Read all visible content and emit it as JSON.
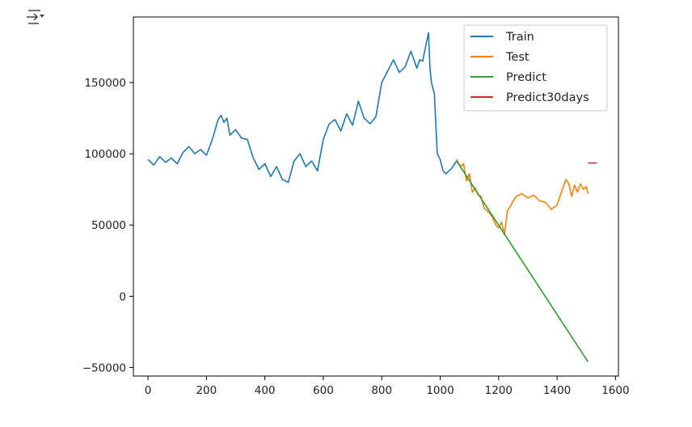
{
  "toolbar": {
    "icon": "output-collapse-icon"
  },
  "chart_data": {
    "type": "line",
    "title": "",
    "xlabel": "",
    "ylabel": "",
    "xlim": [
      -50,
      1610
    ],
    "ylim": [
      -56000,
      196000
    ],
    "xticks": [
      0,
      200,
      400,
      600,
      800,
      1000,
      1200,
      1400,
      1600
    ],
    "xtick_labels": [
      "0",
      "200",
      "400",
      "600",
      "800",
      "1000",
      "1200",
      "1400",
      "1600"
    ],
    "yticks": [
      -50000,
      0,
      50000,
      100000,
      150000
    ],
    "ytick_labels": [
      "−50000",
      "0",
      "50000",
      "100000",
      "150000"
    ],
    "grid": false,
    "legend_position": "top-right",
    "series": [
      {
        "name": "Train",
        "color": "#1f77b4",
        "x": [
          0,
          20,
          40,
          60,
          80,
          100,
          120,
          140,
          160,
          180,
          200,
          220,
          240,
          250,
          260,
          270,
          280,
          300,
          320,
          340,
          360,
          380,
          400,
          420,
          440,
          460,
          480,
          500,
          520,
          540,
          560,
          580,
          600,
          620,
          640,
          660,
          680,
          700,
          720,
          740,
          760,
          780,
          800,
          820,
          840,
          860,
          880,
          900,
          920,
          930,
          940,
          950,
          960,
          965,
          970,
          980,
          990,
          1000,
          1010,
          1020,
          1040,
          1056
        ],
        "y": [
          96000,
          92000,
          98000,
          94000,
          97000,
          93000,
          101000,
          105000,
          100000,
          103000,
          99000,
          110000,
          124000,
          127000,
          122000,
          125000,
          113000,
          117000,
          111000,
          110000,
          97000,
          89000,
          93000,
          84000,
          91000,
          82000,
          80000,
          95000,
          100000,
          91000,
          95000,
          88000,
          110000,
          121000,
          124000,
          116000,
          128000,
          120000,
          137000,
          125000,
          121000,
          126000,
          150000,
          158000,
          166000,
          157000,
          161000,
          172000,
          160000,
          166000,
          165000,
          175000,
          185000,
          160000,
          150000,
          142000,
          100000,
          96000,
          88000,
          86000,
          90000,
          95000
        ]
      },
      {
        "name": "Test",
        "color": "#ff7f0e",
        "x": [
          1056,
          1070,
          1080,
          1090,
          1100,
          1110,
          1120,
          1130,
          1140,
          1150,
          1160,
          1170,
          1180,
          1190,
          1200,
          1210,
          1220,
          1230,
          1240,
          1250,
          1260,
          1280,
          1300,
          1320,
          1340,
          1360,
          1380,
          1400,
          1410,
          1420,
          1430,
          1440,
          1450,
          1460,
          1470,
          1480,
          1490,
          1500,
          1506
        ],
        "y": [
          96000,
          91000,
          93000,
          81000,
          86000,
          73000,
          76000,
          71000,
          70000,
          62000,
          60000,
          58000,
          55000,
          50000,
          48000,
          52000,
          43000,
          60000,
          63000,
          67000,
          70000,
          72000,
          69000,
          71000,
          67000,
          66000,
          61000,
          64000,
          70000,
          76000,
          82000,
          79000,
          70000,
          78000,
          73000,
          79000,
          75000,
          77000,
          72000
        ]
      },
      {
        "name": "Predict",
        "color": "#2ca02c",
        "x": [
          1056,
          1506
        ],
        "y": [
          95000,
          -46000
        ]
      },
      {
        "name": "Predict30days",
        "color": "#d62728",
        "x": [
          1506,
          1536
        ],
        "y": [
          93500,
          93500
        ]
      }
    ]
  }
}
